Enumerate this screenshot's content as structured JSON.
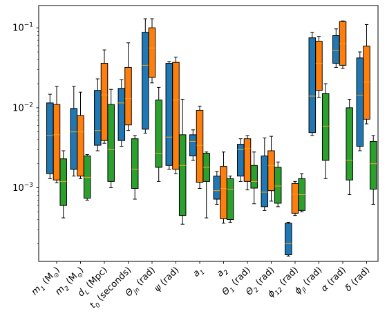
{
  "chart_data": {
    "type": "box",
    "title": "",
    "xlabel": "",
    "ylabel": "",
    "yscale": "log",
    "ylim": [
      0.00012,
      0.19
    ],
    "yticks": [
      {
        "value": 0.001,
        "base": "10",
        "exp": "−3"
      },
      {
        "value": 0.01,
        "base": "10",
        "exp": "−2"
      },
      {
        "value": 0.1,
        "base": "10",
        "exp": "−1"
      }
    ],
    "categories": [
      {
        "main": "m",
        "sub": "1",
        "unit": " (M",
        "unitsub": "⊙",
        "tail": ")"
      },
      {
        "main": "m",
        "sub": "2",
        "unit": " (M",
        "unitsub": "⊙",
        "tail": ")"
      },
      {
        "main": "d",
        "sub": "L",
        "unit": " (Mpc)",
        "unitsub": "",
        "tail": ""
      },
      {
        "main": "t",
        "sub": "0",
        "unit": " (seconds)",
        "unitsub": "",
        "tail": ""
      },
      {
        "main": "Θ",
        "sub": "jn",
        "unit": " (rad)",
        "unitsub": "",
        "tail": ""
      },
      {
        "main": "ψ",
        "sub": "",
        "unit": " (rad)",
        "unitsub": "",
        "tail": ""
      },
      {
        "main": "a",
        "sub": "1",
        "unit": "",
        "unitsub": "",
        "tail": ""
      },
      {
        "main": "a",
        "sub": "2",
        "unit": "",
        "unitsub": "",
        "tail": ""
      },
      {
        "main": "Θ",
        "sub": "1",
        "unit": " (rad)",
        "unitsub": "",
        "tail": ""
      },
      {
        "main": "Θ",
        "sub": "2",
        "unit": " (rad)",
        "unitsub": "",
        "tail": ""
      },
      {
        "main": "ϕ",
        "sub": "12",
        "unit": " (rad)",
        "unitsub": "",
        "tail": ""
      },
      {
        "main": "ϕ",
        "sub": "jl",
        "unit": " (rad)",
        "unitsub": "",
        "tail": ""
      },
      {
        "main": "α",
        "sub": "",
        "unit": " (rad)",
        "unitsub": "",
        "tail": ""
      },
      {
        "main": "δ",
        "sub": "",
        "unit": " (rad)",
        "unitsub": "",
        "tail": ""
      }
    ],
    "series": [
      {
        "color": "#1f77b4",
        "boxes": [
          {
            "whislo": 0.0013,
            "q1": 0.0015,
            "med": 0.0045,
            "q3": 0.0115,
            "whishi": 0.0148
          },
          {
            "whislo": 0.0014,
            "q1": 0.0017,
            "med": 0.005,
            "q3": 0.0098,
            "whishi": 0.0185
          },
          {
            "whislo": 0.0029,
            "q1": 0.0034,
            "med": 0.0052,
            "q3": 0.0165,
            "whishi": 0.023
          },
          {
            "whislo": 0.0033,
            "q1": 0.0039,
            "med": 0.0115,
            "q3": 0.0175,
            "whishi": 0.0225
          },
          {
            "whislo": 0.0048,
            "q1": 0.0054,
            "med": 0.034,
            "q3": 0.088,
            "whishi": 0.13
          },
          {
            "whislo": 0.0017,
            "q1": 0.0019,
            "med": 0.0043,
            "q3": 0.036,
            "whishi": 0.038
          },
          {
            "whislo": 0.0022,
            "q1": 0.0025,
            "med": 0.0038,
            "q3": 0.0046,
            "whishi": 0.0053
          },
          {
            "whislo": 0.00062,
            "q1": 0.00072,
            "med": 0.00092,
            "q3": 0.0014,
            "whishi": 0.0016
          },
          {
            "whislo": 0.0012,
            "q1": 0.0014,
            "med": 0.003,
            "q3": 0.0035,
            "whishi": 0.0041
          },
          {
            "whislo": 0.00052,
            "q1": 0.00058,
            "med": 0.00088,
            "q3": 0.0025,
            "whishi": 0.0042
          },
          {
            "whislo": 0.00014,
            "q1": 0.000145,
            "med": 0.0002,
            "q3": 0.00036,
            "whishi": 0.00037
          },
          {
            "whislo": 0.0045,
            "q1": 0.0049,
            "med": 0.014,
            "q3": 0.075,
            "whishi": 0.088
          },
          {
            "whislo": 0.032,
            "q1": 0.036,
            "med": 0.052,
            "q3": 0.08,
            "whishi": 0.097
          },
          {
            "whislo": 0.0029,
            "q1": 0.0033,
            "med": 0.0143,
            "q3": 0.042,
            "whishi": 0.05
          }
        ]
      },
      {
        "color": "#ff7f0e",
        "boxes": [
          {
            "whislo": 0.00115,
            "q1": 0.00125,
            "med": 0.0046,
            "q3": 0.011,
            "whishi": 0.0185
          },
          {
            "whislo": 0.0013,
            "q1": 0.0014,
            "med": 0.005,
            "q3": 0.008,
            "whishi": 0.0157
          },
          {
            "whislo": 0.0036,
            "q1": 0.0039,
            "med": 0.0145,
            "q3": 0.036,
            "whishi": 0.053
          },
          {
            "whislo": 0.0052,
            "q1": 0.0061,
            "med": 0.013,
            "q3": 0.032,
            "whishi": 0.065
          },
          {
            "whislo": 0.0205,
            "q1": 0.024,
            "med": 0.056,
            "q3": 0.1,
            "whishi": 0.13
          },
          {
            "whislo": 0.0015,
            "q1": 0.0017,
            "med": 0.0125,
            "q3": 0.037,
            "whishi": 0.043
          },
          {
            "whislo": 0.00098,
            "q1": 0.00117,
            "med": 0.0034,
            "q3": 0.0093,
            "whishi": 0.0105
          },
          {
            "whislo": 0.00036,
            "q1": 0.00041,
            "med": 0.00098,
            "q3": 0.00185,
            "whishi": 0.0028
          },
          {
            "whislo": 0.00094,
            "q1": 0.0012,
            "med": 0.0031,
            "q3": 0.0041,
            "whishi": 0.0045
          },
          {
            "whislo": 0.00068,
            "q1": 0.00092,
            "med": 0.0019,
            "q3": 0.0029,
            "whishi": 0.0044
          },
          {
            "whislo": 0.00045,
            "q1": 0.00048,
            "med": 0.00083,
            "q3": 0.00113,
            "whishi": 0.0012
          },
          {
            "whislo": 0.0135,
            "q1": 0.0165,
            "med": 0.036,
            "q3": 0.068,
            "whishi": 0.078
          },
          {
            "whislo": 0.031,
            "q1": 0.034,
            "med": 0.063,
            "q3": 0.12,
            "whishi": 0.122
          },
          {
            "whislo": 0.0063,
            "q1": 0.0072,
            "med": 0.021,
            "q3": 0.059,
            "whishi": 0.11
          }
        ]
      },
      {
        "color": "#2ca02c",
        "boxes": [
          {
            "whislo": 0.00042,
            "q1": 0.0006,
            "med": 0.0012,
            "q3": 0.0023,
            "whishi": 0.0029
          },
          {
            "whislo": 0.0007,
            "q1": 0.00074,
            "med": 0.00135,
            "q3": 0.0025,
            "whishi": 0.0026
          },
          {
            "whislo": 0.001,
            "q1": 0.0012,
            "med": 0.003,
            "q3": 0.011,
            "whishi": 0.017
          },
          {
            "whislo": 0.00072,
            "q1": 0.00098,
            "med": 0.0017,
            "q3": 0.0041,
            "whishi": 0.0045
          },
          {
            "whislo": 0.0012,
            "q1": 0.0018,
            "med": 0.0027,
            "q3": 0.0125,
            "whishi": 0.018
          },
          {
            "whislo": 0.00035,
            "q1": 0.00045,
            "med": 0.0019,
            "q3": 0.0046,
            "whishi": 0.0128
          },
          {
            "whislo": 0.00042,
            "q1": 0.0012,
            "med": 0.0018,
            "q3": 0.0027,
            "whishi": 0.0028
          },
          {
            "whislo": 0.00037,
            "q1": 0.0004,
            "med": 0.00095,
            "q3": 0.0013,
            "whishi": 0.0014
          },
          {
            "whislo": 0.00063,
            "q1": 0.00099,
            "med": 0.0012,
            "q3": 0.0019,
            "whishi": 0.0028
          },
          {
            "whislo": 0.00058,
            "q1": 0.00064,
            "med": 0.00105,
            "q3": 0.0018,
            "whishi": 0.0021
          },
          {
            "whislo": 0.0005,
            "q1": 0.00052,
            "med": 0.00082,
            "q3": 0.0013,
            "whishi": 0.0015
          },
          {
            "whislo": 0.0013,
            "q1": 0.0022,
            "med": 0.0059,
            "q3": 0.015,
            "whishi": 0.02
          },
          {
            "whislo": 0.00082,
            "q1": 0.00125,
            "med": 0.0022,
            "q3": 0.01,
            "whishi": 0.0128
          },
          {
            "whislo": 0.00062,
            "q1": 0.00096,
            "med": 0.002,
            "q3": 0.0038,
            "whishi": 0.0045
          }
        ]
      }
    ],
    "median_color": "#f5a623",
    "legend": "none",
    "grid": false
  }
}
